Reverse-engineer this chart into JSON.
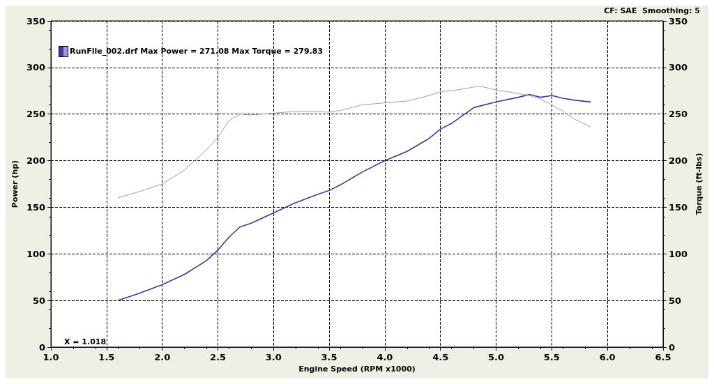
{
  "chart_data": {
    "type": "line",
    "xlabel": "Engine Speed (RPM x1000)",
    "ylabel": "Power (hp)",
    "y2label": "Torque (ft-lbs)",
    "annotations": [
      "CF: SAE  Smoothing: 5",
      "RunFile_002.drf Max Power = 271.08 Max Torque = 279.83",
      "X = 1.018"
    ],
    "series": [
      {
        "color": "#3a3aa8",
        "x": [
          1.6,
          1.8,
          2.0,
          2.2,
          2.4,
          2.5,
          2.6,
          2.7,
          2.8,
          3.0,
          3.2,
          3.4,
          3.5,
          3.6,
          3.8,
          4.0,
          4.2,
          4.4,
          4.5,
          4.6,
          4.8,
          5.0,
          5.2,
          5.3,
          5.4,
          5.5,
          5.6,
          5.7,
          5.85
        ],
        "values": [
          50,
          58,
          67,
          78,
          93,
          104,
          118,
          129,
          133,
          144,
          155,
          164,
          168,
          174,
          188,
          200,
          210,
          224,
          234,
          240,
          257,
          263,
          268,
          271,
          268,
          270,
          267,
          265,
          263
        ]
      },
      {
        "color": "#9a9ad8",
        "axis": "y2",
        "x": [
          1.6,
          1.8,
          2.0,
          2.2,
          2.4,
          2.5,
          2.6,
          2.7,
          2.8,
          3.0,
          3.2,
          3.4,
          3.5,
          3.6,
          3.8,
          4.0,
          4.2,
          4.4,
          4.5,
          4.6,
          4.7,
          4.85,
          5.0,
          5.2,
          5.3,
          5.4,
          5.5,
          5.6,
          5.7,
          5.85
        ],
        "values": [
          160,
          167,
          175,
          190,
          212,
          225,
          243,
          250,
          249,
          251,
          253,
          253,
          252,
          254,
          260,
          262,
          264,
          270,
          274,
          275,
          277,
          280,
          276,
          272,
          270,
          266,
          260,
          253,
          245,
          236
        ]
      }
    ],
    "xlim": [
      1,
      6.5
    ],
    "xticks": [
      {
        "value": 1,
        "label": "1.0"
      },
      {
        "value": 1.5,
        "label": "1.5"
      },
      {
        "value": 2,
        "label": "2.0"
      },
      {
        "value": 2.5,
        "label": "2.5"
      },
      {
        "value": 3,
        "label": "3.0"
      },
      {
        "value": 3.5,
        "label": "3.5"
      },
      {
        "value": 4,
        "label": "4.0"
      },
      {
        "value": 4.5,
        "label": "4.5"
      },
      {
        "value": 5,
        "label": "5.0"
      },
      {
        "value": 5.5,
        "label": "5.5"
      },
      {
        "value": 6,
        "label": "6.0"
      },
      {
        "value": 6.5,
        "label": "6.5"
      }
    ],
    "ylim": [
      0,
      350
    ],
    "yticks": [
      0,
      50,
      100,
      150,
      200,
      250,
      300,
      350
    ],
    "y2lim": [
      0,
      350
    ],
    "y2ticks": [
      0,
      50,
      100,
      150,
      200,
      250,
      300,
      350
    ],
    "grid": true,
    "line_style": "solid",
    "marker": "none"
  }
}
